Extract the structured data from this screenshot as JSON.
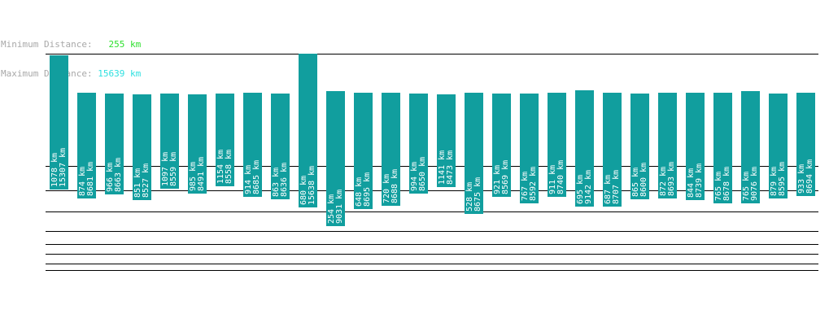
{
  "summary": {
    "min_label": "Minimum Distance:",
    "min_value": "  255 km",
    "max_label": "Maximum Distance:",
    "max_value": "15639 km"
  },
  "colors": {
    "bar": "#119e9e",
    "bar_border": "#0b7373",
    "line": "#000000",
    "label_text": "#ffffff",
    "header_label": "#a8a8a8",
    "min_value": "#2ee02e",
    "max_value": "#2ee0e0"
  },
  "chart_data": {
    "type": "bar",
    "unit": "km",
    "bars": [
      {
        "min": 1078,
        "max": 15307
      },
      {
        "min": 874,
        "max": 8681
      },
      {
        "min": 966,
        "max": 8663
      },
      {
        "min": 851,
        "max": 8527
      },
      {
        "min": 1097,
        "max": 8559
      },
      {
        "min": 985,
        "max": 8491
      },
      {
        "min": 1154,
        "max": 8558
      },
      {
        "min": 914,
        "max": 8685
      },
      {
        "min": 863,
        "max": 8636
      },
      {
        "min": 680,
        "max": 15638
      },
      {
        "min": 254,
        "max": 9031
      },
      {
        "min": 648,
        "max": 8695
      },
      {
        "min": 720,
        "max": 8688
      },
      {
        "min": 994,
        "max": 8650
      },
      {
        "min": 1141,
        "max": 8473
      },
      {
        "min": 528,
        "max": 8675
      },
      {
        "min": 921,
        "max": 8569
      },
      {
        "min": 767,
        "max": 8592
      },
      {
        "min": 911,
        "max": 8740
      },
      {
        "min": 695,
        "max": 9142
      },
      {
        "min": 687,
        "max": 8707
      },
      {
        "min": 865,
        "max": 8600
      },
      {
        "min": 872,
        "max": 8693
      },
      {
        "min": 844,
        "max": 8739
      },
      {
        "min": 765,
        "max": 8678
      },
      {
        "min": 765,
        "max": 9076
      },
      {
        "min": 879,
        "max": 8595
      },
      {
        "min": 933,
        "max": 8694
      }
    ]
  }
}
